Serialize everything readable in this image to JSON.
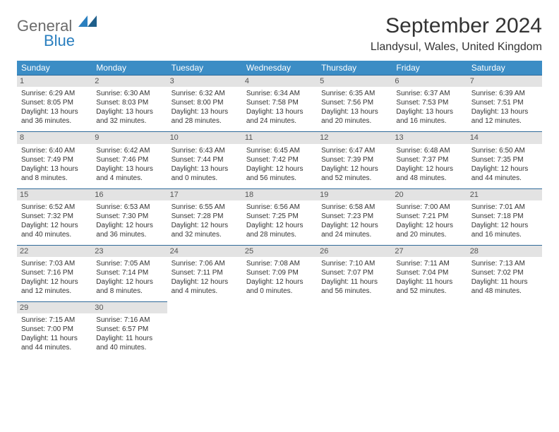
{
  "logo": {
    "general": "General",
    "blue": "Blue"
  },
  "title": "September 2024",
  "location": "Llandysul, Wales, United Kingdom",
  "weekdays": [
    "Sunday",
    "Monday",
    "Tuesday",
    "Wednesday",
    "Thursday",
    "Friday",
    "Saturday"
  ],
  "colors": {
    "header_bg": "#3c8dc5",
    "header_text": "#ffffff",
    "daynum_bg": "#e3e3e3",
    "border": "#2f6a9a",
    "text": "#333333"
  },
  "days": [
    {
      "n": "1",
      "sr": "6:29 AM",
      "ss": "8:05 PM",
      "dl": "13 hours and 36 minutes."
    },
    {
      "n": "2",
      "sr": "6:30 AM",
      "ss": "8:03 PM",
      "dl": "13 hours and 32 minutes."
    },
    {
      "n": "3",
      "sr": "6:32 AM",
      "ss": "8:00 PM",
      "dl": "13 hours and 28 minutes."
    },
    {
      "n": "4",
      "sr": "6:34 AM",
      "ss": "7:58 PM",
      "dl": "13 hours and 24 minutes."
    },
    {
      "n": "5",
      "sr": "6:35 AM",
      "ss": "7:56 PM",
      "dl": "13 hours and 20 minutes."
    },
    {
      "n": "6",
      "sr": "6:37 AM",
      "ss": "7:53 PM",
      "dl": "13 hours and 16 minutes."
    },
    {
      "n": "7",
      "sr": "6:39 AM",
      "ss": "7:51 PM",
      "dl": "13 hours and 12 minutes."
    },
    {
      "n": "8",
      "sr": "6:40 AM",
      "ss": "7:49 PM",
      "dl": "13 hours and 8 minutes."
    },
    {
      "n": "9",
      "sr": "6:42 AM",
      "ss": "7:46 PM",
      "dl": "13 hours and 4 minutes."
    },
    {
      "n": "10",
      "sr": "6:43 AM",
      "ss": "7:44 PM",
      "dl": "13 hours and 0 minutes."
    },
    {
      "n": "11",
      "sr": "6:45 AM",
      "ss": "7:42 PM",
      "dl": "12 hours and 56 minutes."
    },
    {
      "n": "12",
      "sr": "6:47 AM",
      "ss": "7:39 PM",
      "dl": "12 hours and 52 minutes."
    },
    {
      "n": "13",
      "sr": "6:48 AM",
      "ss": "7:37 PM",
      "dl": "12 hours and 48 minutes."
    },
    {
      "n": "14",
      "sr": "6:50 AM",
      "ss": "7:35 PM",
      "dl": "12 hours and 44 minutes."
    },
    {
      "n": "15",
      "sr": "6:52 AM",
      "ss": "7:32 PM",
      "dl": "12 hours and 40 minutes."
    },
    {
      "n": "16",
      "sr": "6:53 AM",
      "ss": "7:30 PM",
      "dl": "12 hours and 36 minutes."
    },
    {
      "n": "17",
      "sr": "6:55 AM",
      "ss": "7:28 PM",
      "dl": "12 hours and 32 minutes."
    },
    {
      "n": "18",
      "sr": "6:56 AM",
      "ss": "7:25 PM",
      "dl": "12 hours and 28 minutes."
    },
    {
      "n": "19",
      "sr": "6:58 AM",
      "ss": "7:23 PM",
      "dl": "12 hours and 24 minutes."
    },
    {
      "n": "20",
      "sr": "7:00 AM",
      "ss": "7:21 PM",
      "dl": "12 hours and 20 minutes."
    },
    {
      "n": "21",
      "sr": "7:01 AM",
      "ss": "7:18 PM",
      "dl": "12 hours and 16 minutes."
    },
    {
      "n": "22",
      "sr": "7:03 AM",
      "ss": "7:16 PM",
      "dl": "12 hours and 12 minutes."
    },
    {
      "n": "23",
      "sr": "7:05 AM",
      "ss": "7:14 PM",
      "dl": "12 hours and 8 minutes."
    },
    {
      "n": "24",
      "sr": "7:06 AM",
      "ss": "7:11 PM",
      "dl": "12 hours and 4 minutes."
    },
    {
      "n": "25",
      "sr": "7:08 AM",
      "ss": "7:09 PM",
      "dl": "12 hours and 0 minutes."
    },
    {
      "n": "26",
      "sr": "7:10 AM",
      "ss": "7:07 PM",
      "dl": "11 hours and 56 minutes."
    },
    {
      "n": "27",
      "sr": "7:11 AM",
      "ss": "7:04 PM",
      "dl": "11 hours and 52 minutes."
    },
    {
      "n": "28",
      "sr": "7:13 AM",
      "ss": "7:02 PM",
      "dl": "11 hours and 48 minutes."
    },
    {
      "n": "29",
      "sr": "7:15 AM",
      "ss": "7:00 PM",
      "dl": "11 hours and 44 minutes."
    },
    {
      "n": "30",
      "sr": "7:16 AM",
      "ss": "6:57 PM",
      "dl": "11 hours and 40 minutes."
    }
  ],
  "labels": {
    "sunrise": "Sunrise:",
    "sunset": "Sunset:",
    "daylight": "Daylight:"
  }
}
